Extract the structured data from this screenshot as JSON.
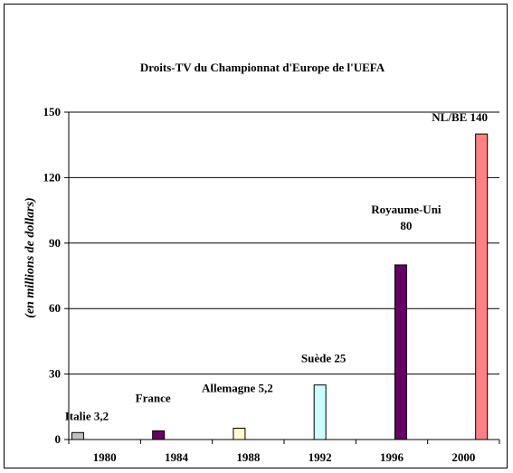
{
  "chart_data": {
    "type": "bar",
    "title": "Droits-TV du Championnat d'Europe de l'UEFA",
    "ylabel": "(en millions de dollars)",
    "xlabel": "",
    "ylim": [
      0,
      150
    ],
    "yticks": [
      0,
      30,
      60,
      90,
      120,
      150
    ],
    "xlim": [
      1978,
      2002
    ],
    "xticks": [
      "1980",
      "1984",
      "1988",
      "1992",
      "1996",
      "2000"
    ],
    "grid": "horizontal",
    "points": [
      {
        "x": 1978.5,
        "value": 3.2,
        "color": "#c0c0c0",
        "label_lines": [
          "Italie 3,2"
        ]
      },
      {
        "x": 1983.0,
        "value": 4,
        "color": "#660066",
        "label_lines": [
          "France"
        ]
      },
      {
        "x": 1987.5,
        "value": 5.2,
        "color": "#ffffcc",
        "label_lines": [
          "Allemagne 5,2"
        ]
      },
      {
        "x": 1992.0,
        "value": 25,
        "color": "#ccffff",
        "label_lines": [
          "Suède 25"
        ]
      },
      {
        "x": 1996.5,
        "value": 80,
        "color": "#660066",
        "label_lines": [
          "Royaume-Uni",
          "80"
        ]
      },
      {
        "x": 2001.0,
        "value": 140,
        "color": "#ff8080",
        "label_lines": [
          "NL/BE 140"
        ]
      }
    ]
  }
}
